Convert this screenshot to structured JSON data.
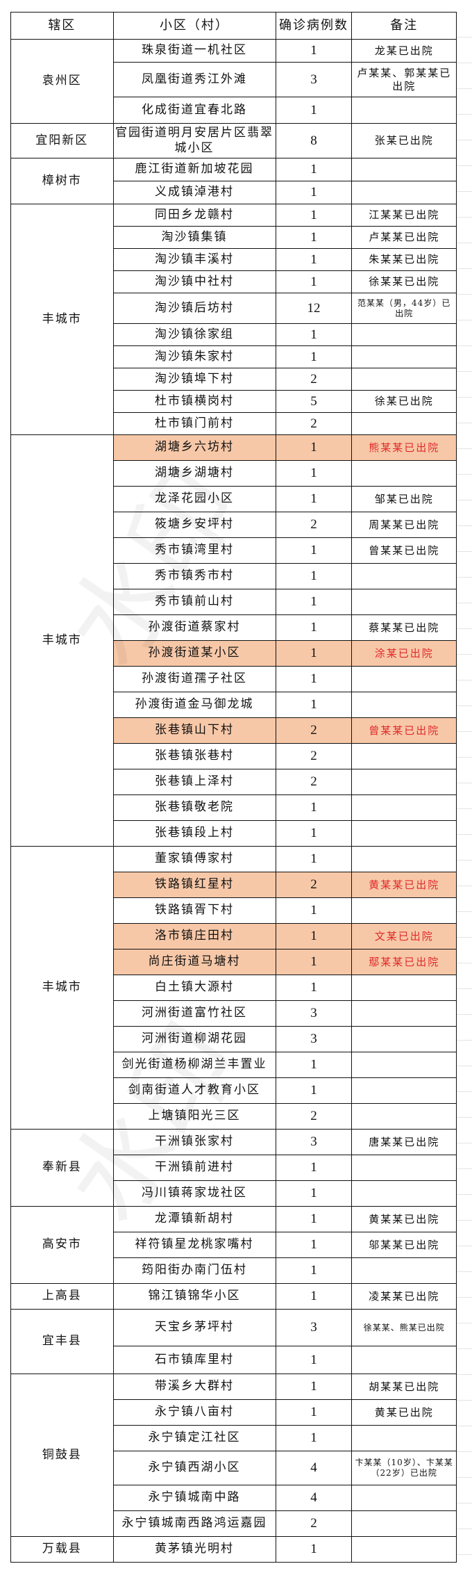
{
  "header": {
    "district": "辖区",
    "community": "小区（村）",
    "cases": "确诊病例数",
    "note": "备注"
  },
  "highlight_color": "#f7c8a8",
  "highlight_text_color": "#e02a2a",
  "groups": [
    {
      "district": "袁州区",
      "rows": [
        {
          "community": "珠泉街道一机社区",
          "cases": "1",
          "note": "龙某已出院"
        },
        {
          "community": "凤凰街道秀江外滩",
          "cases": "3",
          "note": "卢某某、郭某某已出院"
        },
        {
          "community": "化成街道宜春北路",
          "cases": "1",
          "note": ""
        }
      ]
    },
    {
      "district": "宜阳新区",
      "rows": [
        {
          "community": "官园街道明月安居片区翡翠城小区",
          "cases": "8",
          "note": "张某已出院"
        }
      ]
    },
    {
      "district": "樟树市",
      "rows": [
        {
          "community": "鹿江街道新加坡花园",
          "cases": "1",
          "note": ""
        },
        {
          "community": "义成镇淖港村",
          "cases": "1",
          "note": ""
        }
      ]
    },
    {
      "district": "丰城市",
      "rows": [
        {
          "community": "同田乡龙赣村",
          "cases": "1",
          "note": "江某某已出院"
        },
        {
          "community": "淘沙镇集镇",
          "cases": "1",
          "note": "卢某某已出院"
        },
        {
          "community": "淘沙镇丰溪村",
          "cases": "1",
          "note": "朱某某已出院"
        },
        {
          "community": "淘沙镇中社村",
          "cases": "1",
          "note": "徐某某已出院"
        },
        {
          "community": "淘沙镇后坊村",
          "cases": "12",
          "note": "范某某（男，44岁）已出院",
          "small": true
        },
        {
          "community": "淘沙镇徐家组",
          "cases": "1",
          "note": ""
        },
        {
          "community": "淘沙镇朱家村",
          "cases": "1",
          "note": ""
        },
        {
          "community": "淘沙镇埠下村",
          "cases": "2",
          "note": ""
        },
        {
          "community": "杜市镇横岗村",
          "cases": "5",
          "note": "徐某已出院"
        },
        {
          "community": "杜市镇门前村",
          "cases": "2",
          "note": ""
        }
      ]
    },
    {
      "district": "丰城市",
      "rows": [
        {
          "community": "湖塘乡六坊村",
          "cases": "1",
          "note": "熊某某已出院",
          "highlight": true
        },
        {
          "community": "湖塘乡湖塘村",
          "cases": "1",
          "note": ""
        },
        {
          "community": "龙泽花园小区",
          "cases": "1",
          "note": "邹某已出院"
        },
        {
          "community": "筱塘乡安坪村",
          "cases": "2",
          "note": "周某某已出院"
        },
        {
          "community": "秀市镇湾里村",
          "cases": "1",
          "note": "曾某某已出院"
        },
        {
          "community": "秀市镇秀市村",
          "cases": "1",
          "note": ""
        },
        {
          "community": "秀市镇前山村",
          "cases": "1",
          "note": ""
        },
        {
          "community": "孙渡街道蔡家村",
          "cases": "1",
          "note": "蔡某某已出院"
        },
        {
          "community": "孙渡街道某小区",
          "cases": "1",
          "note": "涂某已出院",
          "highlight": true
        },
        {
          "community": "孙渡街道孺子社区",
          "cases": "1",
          "note": ""
        },
        {
          "community": "孙渡街道金马御龙城",
          "cases": "1",
          "note": ""
        },
        {
          "community": "张巷镇山下村",
          "cases": "2",
          "note": "曾某某已出院",
          "highlight": true
        },
        {
          "community": "张巷镇张巷村",
          "cases": "2",
          "note": ""
        },
        {
          "community": "张巷镇上泽村",
          "cases": "2",
          "note": ""
        },
        {
          "community": "张巷镇敬老院",
          "cases": "1",
          "note": ""
        },
        {
          "community": "张巷镇段上村",
          "cases": "1",
          "note": ""
        }
      ]
    },
    {
      "district": "丰城市",
      "rows": [
        {
          "community": "董家镇傅家村",
          "cases": "1",
          "note": ""
        },
        {
          "community": "铁路镇红星村",
          "cases": "2",
          "note": "黄某某已出院",
          "highlight": true
        },
        {
          "community": "铁路镇胥下村",
          "cases": "1",
          "note": ""
        },
        {
          "community": "洛市镇庄田村",
          "cases": "1",
          "note": "文某已出院",
          "highlight": true
        },
        {
          "community": "尚庄街道马塘村",
          "cases": "1",
          "note": "鄢某某已出院",
          "highlight": true
        },
        {
          "community": "白土镇大源村",
          "cases": "1",
          "note": ""
        },
        {
          "community": "河洲街道富竹社区",
          "cases": "3",
          "note": ""
        },
        {
          "community": "河洲街道柳湖花园",
          "cases": "3",
          "note": ""
        },
        {
          "community": "剑光街道杨柳湖兰丰置业",
          "cases": "1",
          "note": ""
        },
        {
          "community": "剑南街道人才教育小区",
          "cases": "1",
          "note": ""
        },
        {
          "community": "上塘镇阳光三区",
          "cases": "2",
          "note": ""
        }
      ]
    },
    {
      "district": "奉新县",
      "rows": [
        {
          "community": "干洲镇张家村",
          "cases": "3",
          "note": "唐某某已出院"
        },
        {
          "community": "干洲镇前进村",
          "cases": "1",
          "note": ""
        },
        {
          "community": "冯川镇蒋家垅社区",
          "cases": "1",
          "note": ""
        }
      ]
    },
    {
      "district": "高安市",
      "rows": [
        {
          "community": "龙潭镇新胡村",
          "cases": "1",
          "note": "黄某某已出院"
        },
        {
          "community": "祥符镇星龙桃家嘴村",
          "cases": "1",
          "note": "邬某某已出院"
        },
        {
          "community": "筠阳街办南门伍村",
          "cases": "1",
          "note": ""
        }
      ]
    },
    {
      "district": "上高县",
      "rows": [
        {
          "community": "锦江镇锦华小区",
          "cases": "1",
          "note": "凌某某已出院"
        }
      ]
    },
    {
      "district": "宜丰县",
      "rows": [
        {
          "community": "天宝乡茅坪村",
          "cases": "3",
          "note": "徐某某、熊某已出院",
          "small": true
        },
        {
          "community": "石市镇库里村",
          "cases": "1",
          "note": ""
        }
      ]
    },
    {
      "district": "铜鼓县",
      "rows": [
        {
          "community": "带溪乡大群村",
          "cases": "1",
          "note": "胡某某已出院"
        },
        {
          "community": "永宁镇八亩村",
          "cases": "1",
          "note": "黄某已出院"
        },
        {
          "community": "永宁镇定江社区",
          "cases": "1",
          "note": ""
        },
        {
          "community": "永宁镇西湖小区",
          "cases": "4",
          "note": "卞某某（10岁）、卞某某（22岁）已出院",
          "small": true
        },
        {
          "community": "永宁镇城南中路",
          "cases": "4",
          "note": ""
        },
        {
          "community": "永宁镇城南西路鸿运嘉园",
          "cases": "2",
          "note": ""
        }
      ]
    },
    {
      "district": "万载县",
      "rows": [
        {
          "community": "黄茅镇光明村",
          "cases": "1",
          "note": ""
        }
      ]
    }
  ]
}
